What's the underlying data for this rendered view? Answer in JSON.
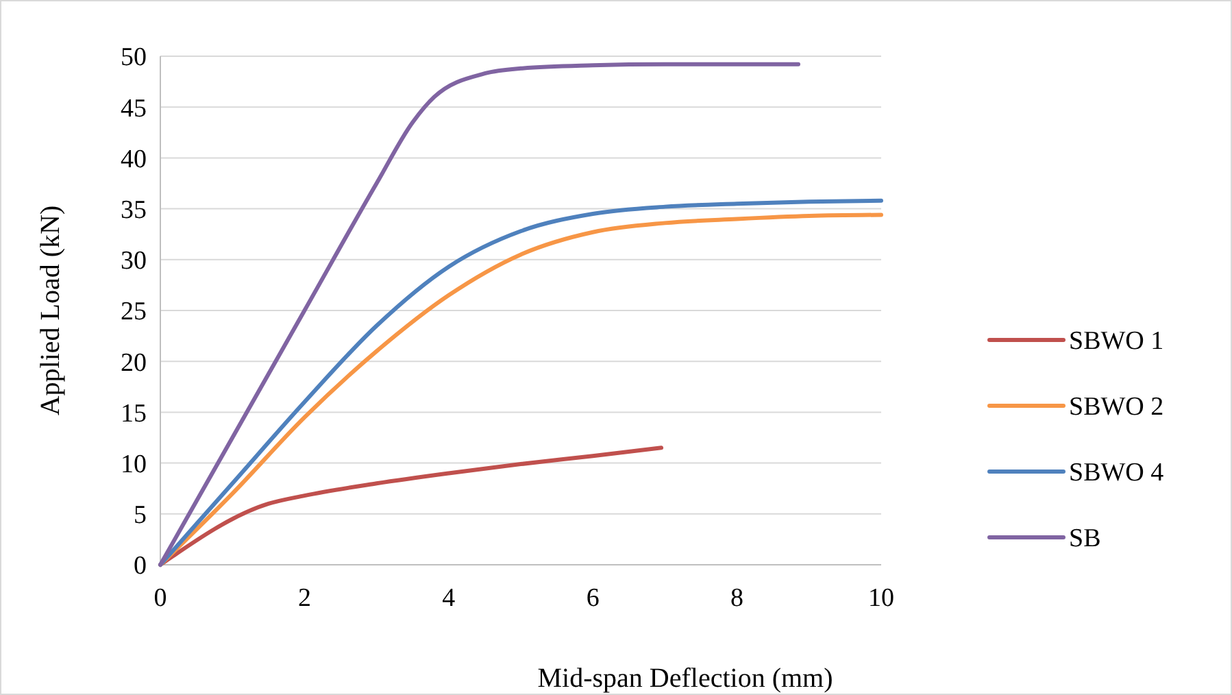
{
  "chart_data": {
    "type": "line",
    "xlabel": "Mid-span Deflection (mm)",
    "ylabel": "Applied Load (kN)",
    "xlim": [
      0,
      10
    ],
    "xticks": [
      0,
      2,
      4,
      6,
      8,
      10
    ],
    "ylim": [
      0,
      50
    ],
    "yticks": [
      0,
      5,
      10,
      15,
      20,
      25,
      30,
      35,
      40,
      45,
      50
    ],
    "grid": "y",
    "legend": "right",
    "marker": "none",
    "line_style": "solid",
    "series": [
      {
        "name": "SBWO 1",
        "color": "#c0504d",
        "x": [
          0,
          1.5,
          2,
          3,
          4,
          5,
          6,
          6.95
        ],
        "values": [
          0,
          6,
          6.8,
          8,
          9,
          9.9,
          10.7,
          11.5
        ]
      },
      {
        "name": "SBWO 2",
        "color": "#f79646",
        "x": [
          0,
          1,
          2,
          3,
          4,
          5,
          6,
          7,
          8,
          9,
          10
        ],
        "values": [
          0,
          7,
          14.5,
          21,
          26.5,
          30.5,
          32.7,
          33.6,
          34,
          34.3,
          34.4
        ]
      },
      {
        "name": "SBWO 4",
        "color": "#4f81bd",
        "x": [
          0,
          1,
          2,
          3,
          4,
          5,
          6,
          7,
          8,
          9,
          10
        ],
        "values": [
          0,
          8,
          16,
          23.5,
          29.3,
          32.8,
          34.5,
          35.2,
          35.5,
          35.7,
          35.8
        ]
      },
      {
        "name": "SB",
        "color": "#8064a2",
        "x": [
          0,
          1,
          2,
          3,
          3.5,
          3.8,
          4.5,
          5,
          6,
          7,
          8,
          8.85
        ],
        "values": [
          0,
          12.5,
          25,
          37.5,
          43.5,
          46,
          48.3,
          48.8,
          49.1,
          49.2,
          49.2,
          49.2
        ]
      }
    ]
  }
}
